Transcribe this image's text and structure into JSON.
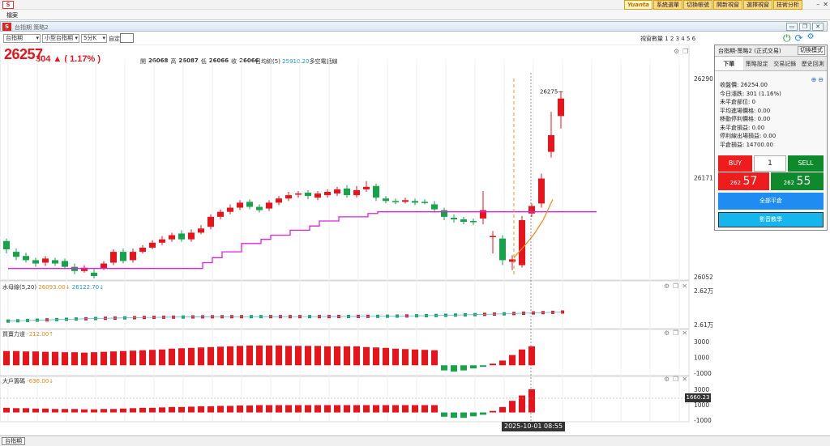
{
  "app": {
    "menu_item": "檔案",
    "top_buttons": [
      "Yuanta",
      "系統選單",
      "切換帳號",
      "開新視窗",
      "選擇視窗",
      "技術分析"
    ],
    "window_title": "台指期 策略2"
  },
  "toolbar": {
    "product_select": "台指期",
    "contract_select": "小型台指期",
    "interval_select": "5分K",
    "custom_label": "自定:",
    "view_count": "視窗數量 1 2 3 4 5 6"
  },
  "quote": {
    "last": "26257",
    "change": "304 ▲ ( 1.17% )",
    "open_label": "開",
    "open": "26068",
    "high_label": "高",
    "high": "26087",
    "low_label": "低",
    "low": "26066",
    "close_label": "收",
    "close": "26066",
    "ma_label": "日均線(5)",
    "ma_value": "25910.20",
    "ma_suffix": "多空電話線"
  },
  "main_chart": {
    "y_ticks": [
      "26290",
      "26171",
      "26052"
    ],
    "peak_label": "26275"
  },
  "indicators": [
    {
      "name": "水母線(5,20)",
      "v1": "26093.00↓",
      "v2": "26122.70↓",
      "y_ticks": [
        "2.62万",
        "2.61万"
      ]
    },
    {
      "name": "買賣力道",
      "v1": "-212.00↑",
      "y_ticks": [
        "3000",
        "1000",
        "-1000"
      ]
    },
    {
      "name": "大戶籌碼",
      "v1": "-636.00↓",
      "y_ticks": [
        "3000",
        "1000",
        "-1000"
      ],
      "current": "1660.23"
    }
  ],
  "crosshair_time": "2025-10-01  08:55",
  "side_panel": {
    "title": "台指期-策略2 (正式交易)",
    "mode_button": "切換模式",
    "tabs": [
      "下單",
      "策略設定",
      "交易記錄",
      "歷史回測"
    ],
    "info": [
      "收盤價: 26254.00",
      "今日漲跌: 301 (1.16%)",
      "未平倉部位: 0",
      "平均進場價格: 0.00",
      "移動停利價格: 0.00",
      "未平倉損益: 0.00",
      "停利線出場損益: 0.00",
      "平倉損益: 14700.00"
    ],
    "buy_label": "BUY",
    "qty": "1",
    "sell_label": "SELL",
    "bid_prefix": "262",
    "bid_main": "57",
    "ask_prefix": "262",
    "ask_main": "55",
    "flat_all": "全部平倉",
    "video": "影音教學"
  },
  "bottom_tab": "台指期",
  "colors": {
    "up": "#e8141b",
    "down": "#16a34a",
    "ma_line": "#e020e0",
    "accent": "#1e8cf0"
  },
  "chart_data": [
    {
      "type": "candlestick",
      "title": "",
      "ylim": [
        26052,
        26290
      ],
      "candles": [
        [
          26095,
          26085,
          26098,
          26080
        ],
        [
          26082,
          26076,
          26086,
          26072
        ],
        [
          26077,
          26072,
          26081,
          26069
        ],
        [
          26072,
          26068,
          26075,
          26064
        ],
        [
          26069,
          26074,
          26077,
          26065
        ],
        [
          26072,
          26068,
          26075,
          26065
        ],
        [
          26071,
          26064,
          26074,
          26061
        ],
        [
          26064,
          26059,
          26068,
          26055
        ],
        [
          26059,
          26063,
          26066,
          26057
        ],
        [
          26057,
          26053,
          26061,
          26050
        ],
        [
          26062,
          26068,
          26071,
          26060
        ],
        [
          26069,
          26082,
          26085,
          26066
        ],
        [
          26082,
          26071,
          26086,
          26068
        ],
        [
          26072,
          26082,
          26086,
          26069
        ],
        [
          26082,
          26087,
          26090,
          26080
        ],
        [
          26087,
          26093,
          26096,
          26085
        ],
        [
          26093,
          26097,
          26101,
          26090
        ],
        [
          26097,
          26102,
          26105,
          26094
        ],
        [
          26104,
          26097,
          26108,
          26094
        ],
        [
          26097,
          26105,
          26109,
          26094
        ],
        [
          26105,
          26110,
          26114,
          26103
        ],
        [
          26112,
          26124,
          26127,
          26109
        ],
        [
          26124,
          26130,
          26133,
          26121
        ],
        [
          26130,
          26135,
          26139,
          26127
        ],
        [
          26135,
          26141,
          26144,
          26132
        ],
        [
          26142,
          26136,
          26145,
          26133
        ],
        [
          26136,
          26132,
          26139,
          26129
        ],
        [
          26134,
          26141,
          26144,
          26131
        ],
        [
          26141,
          26146,
          26149,
          26138
        ],
        [
          26146,
          26150,
          26154,
          26143
        ],
        [
          26151,
          26152,
          26155,
          26147
        ],
        [
          26153,
          26149,
          26156,
          26145
        ],
        [
          26147,
          26152,
          26155,
          26144
        ],
        [
          26150,
          26154,
          26157,
          26147
        ],
        [
          26152,
          26157,
          26160,
          26149
        ],
        [
          26158,
          26150,
          26162,
          26147
        ],
        [
          26150,
          26156,
          26161,
          26147
        ],
        [
          26157,
          26160,
          26167,
          26154
        ],
        [
          26161,
          26147,
          26164,
          26143
        ],
        [
          26146,
          26143,
          26149,
          26140
        ],
        [
          26143,
          26142,
          26146,
          26139
        ],
        [
          26142,
          26144,
          26147,
          26140
        ],
        [
          26143,
          26141,
          26146,
          26138
        ],
        [
          26142,
          26141,
          26145,
          26139
        ],
        [
          26139,
          26133,
          26143,
          26129
        ],
        [
          26132,
          26124,
          26135,
          26120
        ],
        [
          26123,
          26121,
          26127,
          26117
        ],
        [
          26121,
          26118,
          26124,
          26115
        ],
        [
          26119,
          26118,
          26122,
          26114
        ],
        [
          26122,
          26132,
          26155,
          26115
        ],
        [
          26100,
          26101,
          26107,
          26080
        ],
        [
          26098,
          26072,
          26102,
          26066
        ],
        [
          26070,
          26073,
          26078,
          26060
        ],
        [
          26066,
          26120,
          26125,
          26063
        ],
        [
          26128,
          26137,
          26140,
          26124
        ],
        [
          26140,
          26170,
          26176,
          26135
        ],
        [
          26202,
          26222,
          26250,
          26195
        ],
        [
          26245,
          26266,
          26275,
          26230
        ]
      ]
    },
    {
      "type": "bar",
      "title": "買賣力道",
      "values": [
        1800,
        1800,
        1750,
        1750,
        1700,
        1700,
        1650,
        1650,
        1600,
        1650,
        1700,
        1750,
        1800,
        1850,
        1900,
        1950,
        2000,
        2100,
        2150,
        2200,
        2250,
        2300,
        2350,
        2400,
        2450,
        2500,
        2500,
        2500,
        2500,
        2450,
        2450,
        2450,
        2450,
        2400,
        2400,
        2400,
        2400,
        2300,
        2250,
        2200,
        2100,
        2050,
        2000,
        1950,
        1900,
        -650,
        -800,
        -650,
        -400,
        -200,
        200,
        600,
        1300,
        2000,
        2400
      ]
    },
    {
      "type": "bar",
      "title": "大戶籌碼",
      "values": [
        600,
        550,
        550,
        500,
        500,
        450,
        450,
        450,
        400,
        400,
        450,
        450,
        500,
        550,
        600,
        600,
        650,
        700,
        700,
        750,
        800,
        800,
        850,
        850,
        900,
        900,
        950,
        950,
        950,
        950,
        950,
        950,
        950,
        950,
        950,
        950,
        950,
        950,
        950,
        950,
        950,
        950,
        950,
        950,
        950,
        -550,
        -700,
        -700,
        -500,
        -300,
        200,
        700,
        1500,
        2200,
        3000
      ]
    }
  ]
}
